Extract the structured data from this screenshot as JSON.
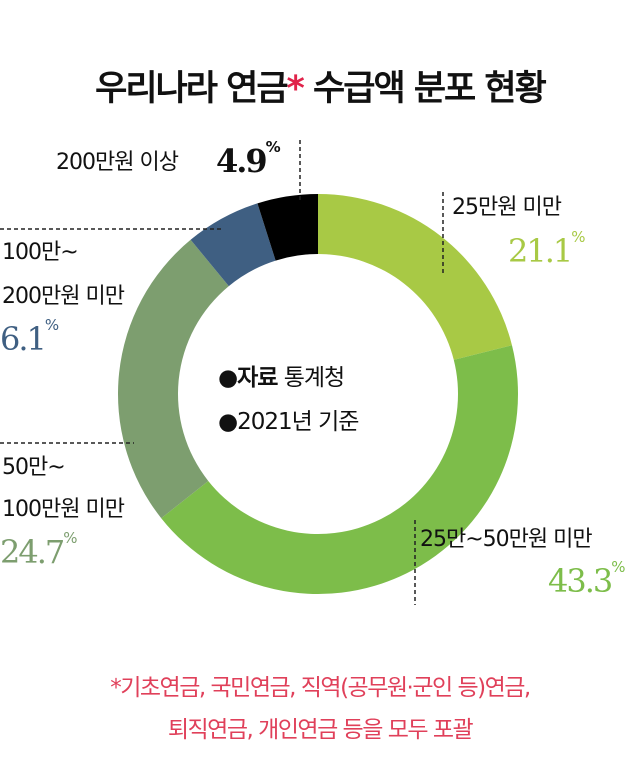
{
  "title": {
    "main_a": "우리나라 연금",
    "star": "*",
    "main_b": " 수급액 분포 현황"
  },
  "center": {
    "source_bullet": "●",
    "source_label": "자료",
    "source_value": " 통계청",
    "basis_bullet": "●",
    "basis_value": "2021년 기준"
  },
  "labels": {
    "seg1": {
      "name": "25만원 미만",
      "value": "21.1",
      "unit": "%",
      "color": "#a8c945"
    },
    "seg2": {
      "name": "25만~50만원 미만",
      "value": "43.3",
      "unit": "%",
      "color": "#7dbd4a"
    },
    "seg3": {
      "name_l1": "50만~",
      "name_l2": "100만원 미만",
      "value": "24.7",
      "unit": "%",
      "color": "#7d9e6f"
    },
    "seg4": {
      "name_l1": "100만~",
      "name_l2": "200만원 미만",
      "value": "6.1",
      "unit": "%",
      "color": "#3f5f82"
    },
    "seg5": {
      "name": "200만원 이상",
      "value": "4.9",
      "unit": "%",
      "color": "#000000"
    }
  },
  "footnote": {
    "line1": "*기초연금, 국민연금, 직역(공무원·군인 등)연금,",
    "line2": "퇴직연금, 개인연금 등을 모두 포괄"
  },
  "chart_data": {
    "type": "pie",
    "subtype": "donut",
    "title": "우리나라 연금* 수급액 분포 현황",
    "categories": [
      "25만원 미만",
      "25만~50만원 미만",
      "50만~100만원 미만",
      "100만~200만원 미만",
      "200만원 이상"
    ],
    "values": [
      21.1,
      43.3,
      24.7,
      6.1,
      4.9
    ],
    "unit": "%",
    "colors": [
      "#a8c945",
      "#7dbd4a",
      "#7d9e6f",
      "#3f5f82",
      "#000000"
    ],
    "start_angle": "12 o'clock, clockwise",
    "annotations": [
      "●자료 통계청",
      "●2021년 기준"
    ],
    "footnote": "*기초연금, 국민연금, 직역(공무원·군인 등)연금, 퇴직연금, 개인연금 등을 모두 포괄"
  }
}
